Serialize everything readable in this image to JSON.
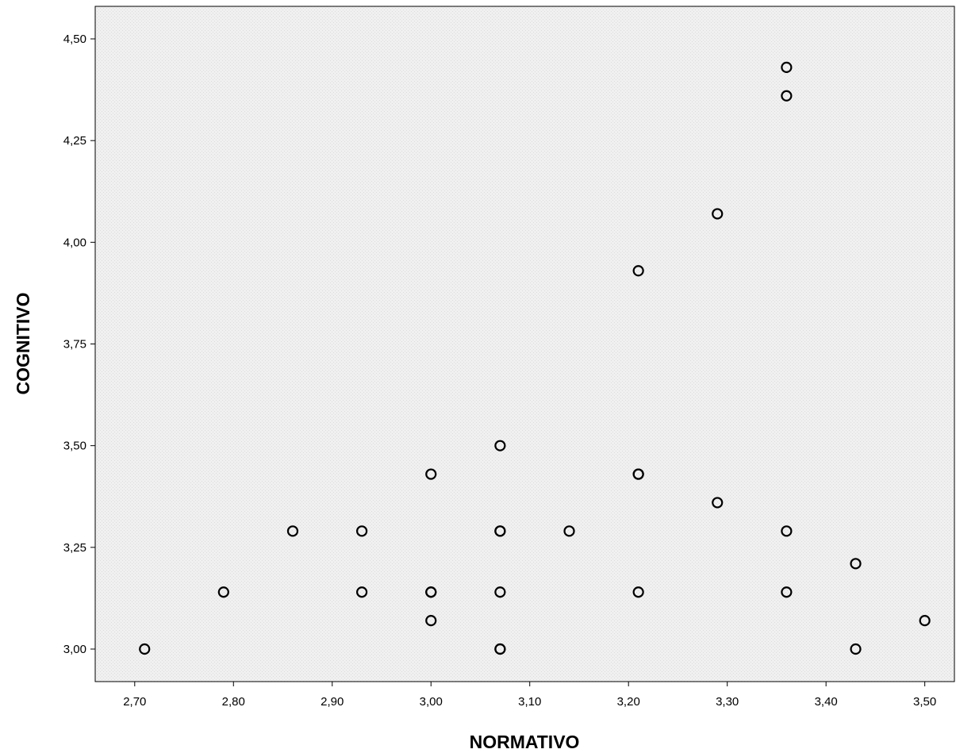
{
  "chart_data": {
    "type": "scatter",
    "title": "",
    "xlabel": "NORMATIVO",
    "ylabel": "COGNITIVO",
    "xlim": [
      2.66,
      3.53
    ],
    "ylim": [
      2.92,
      4.58
    ],
    "xticks": [
      2.7,
      2.8,
      2.9,
      3.0,
      3.1,
      3.2,
      3.3,
      3.4,
      3.5
    ],
    "xtick_labels": [
      "2,70",
      "2,80",
      "2,90",
      "3,00",
      "3,10",
      "3,20",
      "3,30",
      "3,40",
      "3,50"
    ],
    "yticks": [
      3.0,
      3.25,
      3.5,
      3.75,
      4.0,
      4.25,
      4.5
    ],
    "ytick_labels": [
      "3,00",
      "3,25",
      "3,50",
      "3,75",
      "4,00",
      "4,25",
      "4,50"
    ],
    "grid": false,
    "plot_background": "#f0f0f0",
    "marker_color": "#000000",
    "marker": "open-circle",
    "points": [
      {
        "x": 2.71,
        "y": 3.0
      },
      {
        "x": 2.79,
        "y": 3.14
      },
      {
        "x": 2.86,
        "y": 3.29
      },
      {
        "x": 2.93,
        "y": 3.29
      },
      {
        "x": 2.93,
        "y": 3.14
      },
      {
        "x": 3.0,
        "y": 3.43
      },
      {
        "x": 3.0,
        "y": 3.14
      },
      {
        "x": 3.0,
        "y": 3.14
      },
      {
        "x": 3.0,
        "y": 3.07
      },
      {
        "x": 3.07,
        "y": 3.5
      },
      {
        "x": 3.07,
        "y": 3.29
      },
      {
        "x": 3.07,
        "y": 3.29
      },
      {
        "x": 3.07,
        "y": 3.14
      },
      {
        "x": 3.07,
        "y": 3.0
      },
      {
        "x": 3.07,
        "y": 3.0
      },
      {
        "x": 3.14,
        "y": 3.29
      },
      {
        "x": 3.21,
        "y": 3.93
      },
      {
        "x": 3.21,
        "y": 3.43
      },
      {
        "x": 3.21,
        "y": 3.43
      },
      {
        "x": 3.21,
        "y": 3.14
      },
      {
        "x": 3.29,
        "y": 4.07
      },
      {
        "x": 3.29,
        "y": 3.36
      },
      {
        "x": 3.36,
        "y": 4.43
      },
      {
        "x": 3.36,
        "y": 4.36
      },
      {
        "x": 3.36,
        "y": 3.29
      },
      {
        "x": 3.36,
        "y": 3.14
      },
      {
        "x": 3.43,
        "y": 3.21
      },
      {
        "x": 3.43,
        "y": 3.0
      },
      {
        "x": 3.5,
        "y": 3.07
      }
    ]
  }
}
